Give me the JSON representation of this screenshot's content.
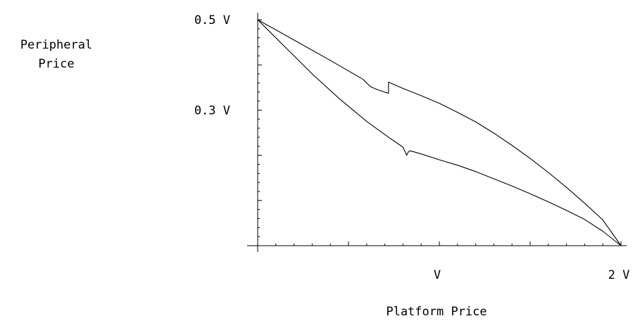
{
  "chart_data": {
    "type": "line",
    "xlabel": "Platform Price",
    "ylabel_line1": "Peripheral",
    "ylabel_line2": "Price",
    "x_unit_label": "V",
    "xlim": [
      0,
      2
    ],
    "ylim": [
      0,
      0.5
    ],
    "x_ticks": [
      {
        "value": 1,
        "label": "V"
      },
      {
        "value": 2,
        "label": "2 V"
      }
    ],
    "y_ticks": [
      {
        "value": 0.3,
        "label": "0.3 V"
      },
      {
        "value": 0.5,
        "label": "0.5 V"
      }
    ],
    "series": [
      {
        "x": [
          0,
          0.2,
          0.4,
          0.58,
          0.62,
          0.66,
          0.72,
          0.72,
          0.8,
          0.9,
          1.0,
          1.1,
          1.2,
          1.3,
          1.4,
          1.5,
          1.6,
          1.7,
          1.8,
          1.9,
          2.0
        ],
        "y": [
          0.5,
          0.455,
          0.41,
          0.368,
          0.352,
          0.345,
          0.337,
          0.362,
          0.348,
          0.332,
          0.315,
          0.295,
          0.274,
          0.249,
          0.222,
          0.193,
          0.162,
          0.129,
          0.094,
          0.057,
          0.0
        ]
      },
      {
        "x": [
          0,
          0.15,
          0.3,
          0.45,
          0.6,
          0.72,
          0.8,
          0.82,
          0.83,
          0.84,
          0.9,
          1.0,
          1.1,
          1.2,
          1.3,
          1.4,
          1.5,
          1.6,
          1.7,
          1.8,
          1.9,
          2.0
        ],
        "y": [
          0.5,
          0.44,
          0.38,
          0.325,
          0.275,
          0.24,
          0.218,
          0.2,
          0.208,
          0.21,
          0.203,
          0.19,
          0.178,
          0.164,
          0.148,
          0.132,
          0.115,
          0.097,
          0.078,
          0.058,
          0.032,
          0.0
        ]
      }
    ]
  }
}
